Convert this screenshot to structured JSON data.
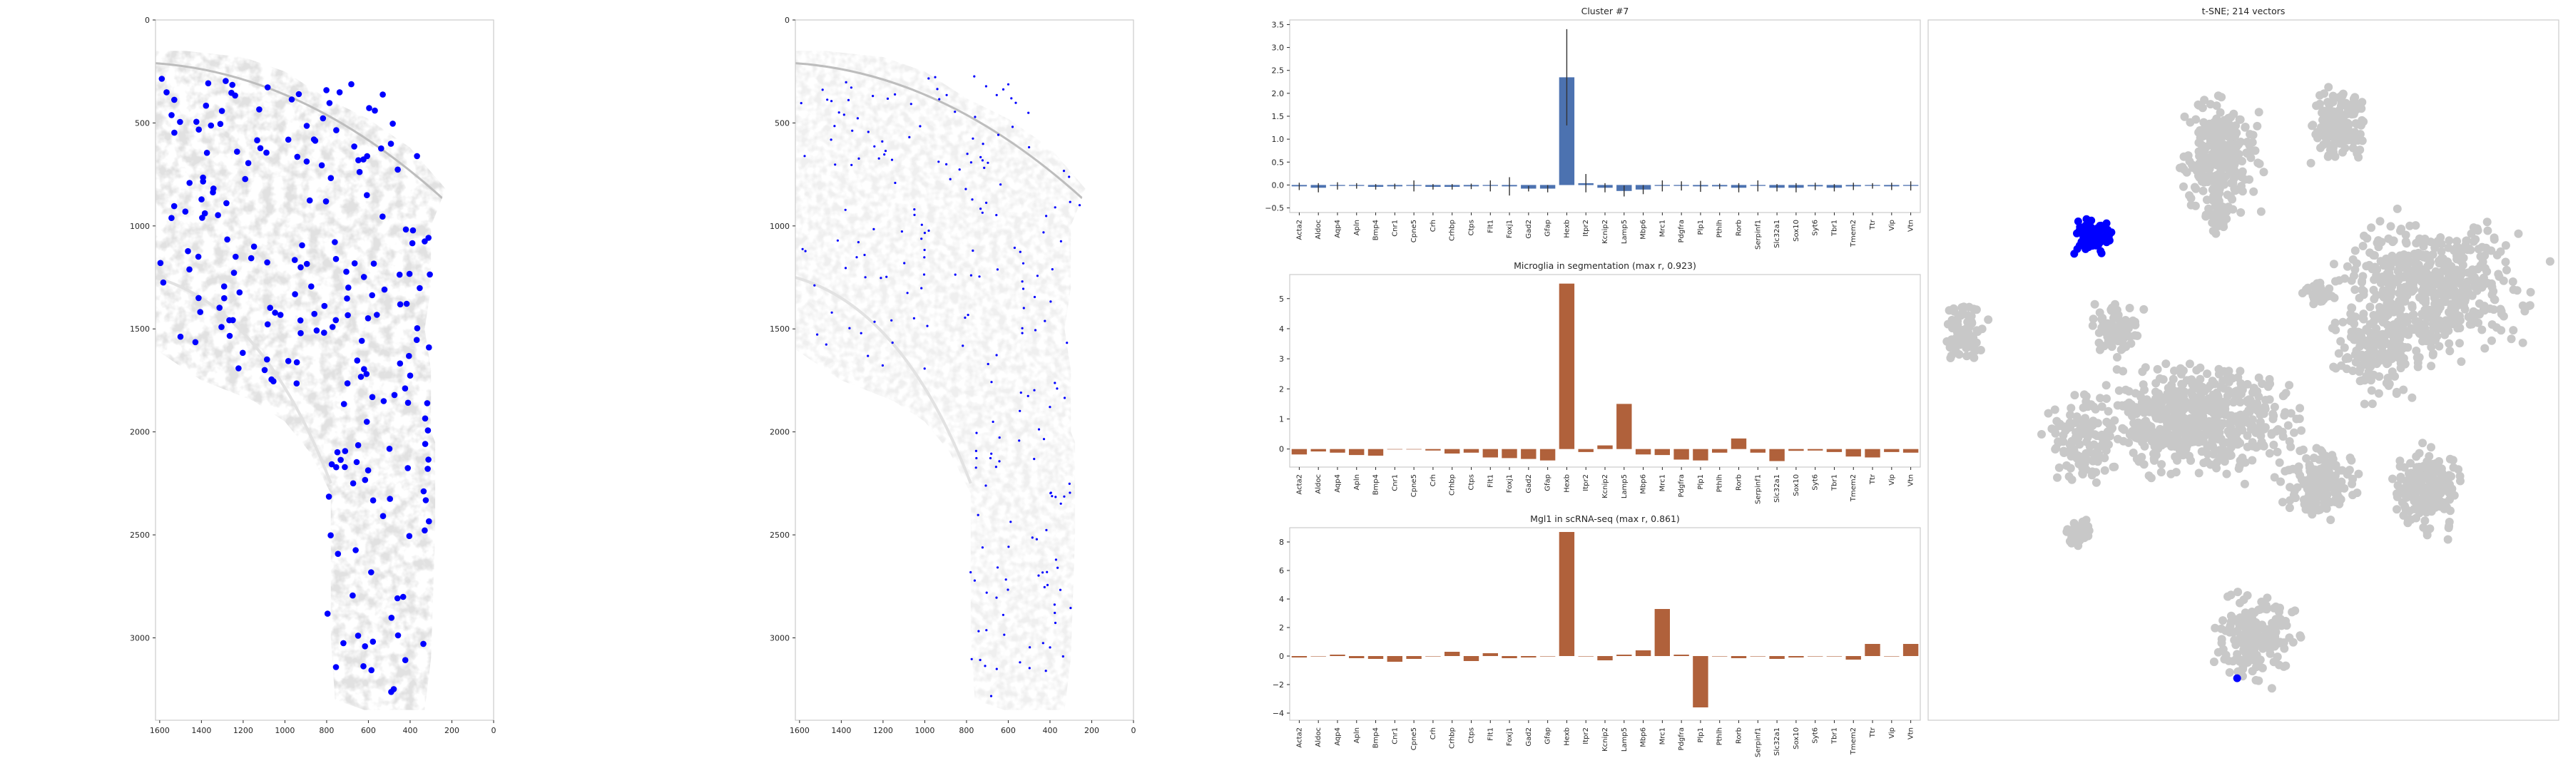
{
  "chart_data": [
    {
      "type": "scatter",
      "id": "spatial-dense",
      "title": "",
      "xlim": [
        1620,
        0
      ],
      "ylim": [
        3400,
        0
      ],
      "x_ticks": [
        1600,
        1400,
        1200,
        1000,
        800,
        600,
        400,
        200,
        0
      ],
      "y_ticks": [
        0,
        500,
        1000,
        1500,
        2000,
        2500,
        3000
      ],
      "background": "grayscale tissue image",
      "point_color": "#0000ff",
      "point_size": "large",
      "seed": 11,
      "n_points": 214
    },
    {
      "type": "scatter",
      "id": "spatial-sparse",
      "title": "",
      "xlim": [
        1620,
        0
      ],
      "ylim": [
        3400,
        0
      ],
      "x_ticks": [
        1600,
        1400,
        1200,
        1000,
        800,
        600,
        400,
        200,
        0
      ],
      "y_ticks": [
        0,
        500,
        1000,
        1500,
        2000,
        2500,
        3000
      ],
      "background": "segmentation map",
      "point_color": "#0000ff",
      "point_size": "small",
      "seed": 23,
      "n_points": 214
    },
    {
      "type": "bar",
      "id": "cluster",
      "title": "Cluster #7",
      "color": "#4c72b0",
      "categories": [
        "Acta2",
        "Aldoc",
        "Aqp4",
        "Apln",
        "Bmp4",
        "Cnr1",
        "Cpne5",
        "Crh",
        "Crhbp",
        "Ctps",
        "Flt1",
        "Foxj1",
        "Gad2",
        "Gfap",
        "Hexb",
        "Itpr2",
        "Kcnip2",
        "Lamp5",
        "Mbp6",
        "Mrc1",
        "Pdgfra",
        "Plp1",
        "Pthlh",
        "Rorb",
        "Serpinf1",
        "Slc32a1",
        "Sox10",
        "Syt6",
        "Tbr1",
        "Tmem2",
        "Ttr",
        "Vip",
        "Vtn"
      ],
      "values": [
        -0.03,
        -0.06,
        -0.02,
        -0.02,
        -0.04,
        -0.03,
        -0.02,
        -0.04,
        -0.04,
        -0.03,
        -0.02,
        -0.03,
        -0.08,
        -0.08,
        2.35,
        0.04,
        -0.06,
        -0.13,
        -0.1,
        -0.02,
        -0.02,
        -0.03,
        -0.03,
        -0.06,
        -0.02,
        -0.06,
        -0.06,
        -0.03,
        -0.06,
        -0.03,
        -0.02,
        -0.03,
        -0.02
      ],
      "errors": [
        0.08,
        0.1,
        0.08,
        0.06,
        0.06,
        0.06,
        0.12,
        0.06,
        0.06,
        0.06,
        0.12,
        0.2,
        0.06,
        0.08,
        1.05,
        0.2,
        0.1,
        0.12,
        0.1,
        0.12,
        0.1,
        0.12,
        0.06,
        0.1,
        0.12,
        0.08,
        0.1,
        0.08,
        0.08,
        0.08,
        0.06,
        0.08,
        0.1
      ],
      "ylim": [
        -0.6,
        3.6
      ],
      "yticks": [
        -0.5,
        0.0,
        0.5,
        1.0,
        1.5,
        2.0,
        2.5,
        3.0,
        3.5
      ],
      "ytick_labels": [
        "−0.5",
        "0.0",
        "0.5",
        "1.0",
        "1.5",
        "2.0",
        "2.5",
        "3.0",
        "3.5"
      ]
    },
    {
      "type": "bar",
      "id": "microglia-seg",
      "title": "Microglia in segmentation (max r, 0.923)",
      "color": "#b0613b",
      "categories": [
        "Acta2",
        "Aldoc",
        "Aqp4",
        "Apln",
        "Bmp4",
        "Cnr1",
        "Cpne5",
        "Crh",
        "Crhbp",
        "Ctps",
        "Flt1",
        "Foxj1",
        "Gad2",
        "Gfap",
        "Hexb",
        "Itpr2",
        "Kcnip2",
        "Lamp5",
        "Mbp6",
        "Mrc1",
        "Pdgfra",
        "Plp1",
        "Pthlh",
        "Rorb",
        "Serpinf1",
        "Slc32a1",
        "Sox10",
        "Syt6",
        "Tbr1",
        "Tmem2",
        "Ttr",
        "Vip",
        "Vtn"
      ],
      "values": [
        -0.18,
        -0.08,
        -0.12,
        -0.2,
        -0.22,
        0.0,
        0.0,
        -0.05,
        -0.15,
        -0.12,
        -0.28,
        -0.3,
        -0.33,
        -0.38,
        5.5,
        -0.1,
        0.12,
        1.5,
        -0.18,
        -0.2,
        -0.35,
        -0.38,
        -0.12,
        0.35,
        -0.12,
        -0.4,
        -0.06,
        -0.05,
        -0.1,
        -0.25,
        -0.28,
        -0.1,
        -0.12
      ],
      "ylim": [
        -0.6,
        5.8
      ],
      "yticks": [
        0,
        1,
        2,
        3,
        4,
        5
      ],
      "ytick_labels": [
        "0",
        "1",
        "2",
        "3",
        "4",
        "5"
      ]
    },
    {
      "type": "bar",
      "id": "mgl1-scrna",
      "title": "Mgl1 in scRNA-seq (max r, 0.861)",
      "color": "#b0613b",
      "categories": [
        "Acta2",
        "Aldoc",
        "Aqp4",
        "Apln",
        "Bmp4",
        "Cnr1",
        "Cpne5",
        "Crh",
        "Crhbp",
        "Ctps",
        "Flt1",
        "Foxj1",
        "Gad2",
        "Gfap",
        "Hexb",
        "Itpr2",
        "Kcnip2",
        "Lamp5",
        "Mbp6",
        "Mrc1",
        "Pdgfra",
        "Plp1",
        "Pthlh",
        "Rorb",
        "Serpinf1",
        "Slc32a1",
        "Sox10",
        "Syt6",
        "Tbr1",
        "Tmem2",
        "Ttr",
        "Vip",
        "Vtn"
      ],
      "values": [
        -0.1,
        0.0,
        0.1,
        -0.15,
        -0.2,
        -0.4,
        -0.2,
        0.0,
        0.3,
        -0.35,
        0.2,
        -0.15,
        -0.1,
        0.0,
        8.7,
        0.0,
        -0.3,
        0.1,
        0.4,
        3.3,
        0.1,
        -3.6,
        0.0,
        -0.15,
        0.0,
        -0.2,
        -0.1,
        0.0,
        0.0,
        -0.25,
        0.85,
        0.0,
        0.85
      ],
      "ylim": [
        -4.5,
        9.0
      ],
      "yticks": [
        -4,
        -2,
        0,
        2,
        4,
        6,
        8
      ],
      "ytick_labels": [
        "−4",
        "−2",
        "0",
        "2",
        "4",
        "6",
        "8"
      ]
    },
    {
      "type": "scatter",
      "id": "tsne",
      "title": "t-SNE; 214 vectors",
      "background_color": "#c8c8c8",
      "highlight_color": "#0000ff",
      "islands": [
        {
          "cx": 0.46,
          "cy": 0.19,
          "rx": 0.08,
          "ry": 0.11,
          "n": 260
        },
        {
          "cx": 0.65,
          "cy": 0.15,
          "rx": 0.05,
          "ry": 0.07,
          "n": 150
        },
        {
          "cx": 0.46,
          "cy": 0.28,
          "rx": 0.03,
          "ry": 0.03,
          "n": 40
        },
        {
          "cx": 0.06,
          "cy": 0.45,
          "rx": 0.04,
          "ry": 0.06,
          "n": 90
        },
        {
          "cx": 0.62,
          "cy": 0.39,
          "rx": 0.03,
          "ry": 0.02,
          "n": 30
        },
        {
          "cx": 0.8,
          "cy": 0.38,
          "rx": 0.2,
          "ry": 0.12,
          "n": 520
        },
        {
          "cx": 0.72,
          "cy": 0.47,
          "rx": 0.1,
          "ry": 0.09,
          "n": 200
        },
        {
          "cx": 0.42,
          "cy": 0.57,
          "rx": 0.21,
          "ry": 0.1,
          "n": 620
        },
        {
          "cx": 0.3,
          "cy": 0.44,
          "rx": 0.05,
          "ry": 0.05,
          "n": 80
        },
        {
          "cx": 0.24,
          "cy": 0.6,
          "rx": 0.07,
          "ry": 0.08,
          "n": 110
        },
        {
          "cx": 0.62,
          "cy": 0.66,
          "rx": 0.08,
          "ry": 0.07,
          "n": 150
        },
        {
          "cx": 0.79,
          "cy": 0.67,
          "rx": 0.07,
          "ry": 0.08,
          "n": 180
        },
        {
          "cx": 0.24,
          "cy": 0.73,
          "rx": 0.03,
          "ry": 0.03,
          "n": 40
        },
        {
          "cx": 0.52,
          "cy": 0.88,
          "rx": 0.09,
          "ry": 0.08,
          "n": 170
        }
      ],
      "highlight_cluster": {
        "cx": 0.26,
        "cy": 0.31,
        "rx": 0.04,
        "ry": 0.03,
        "n": 110
      },
      "highlight_single": {
        "x": 0.49,
        "y": 0.94
      }
    }
  ]
}
